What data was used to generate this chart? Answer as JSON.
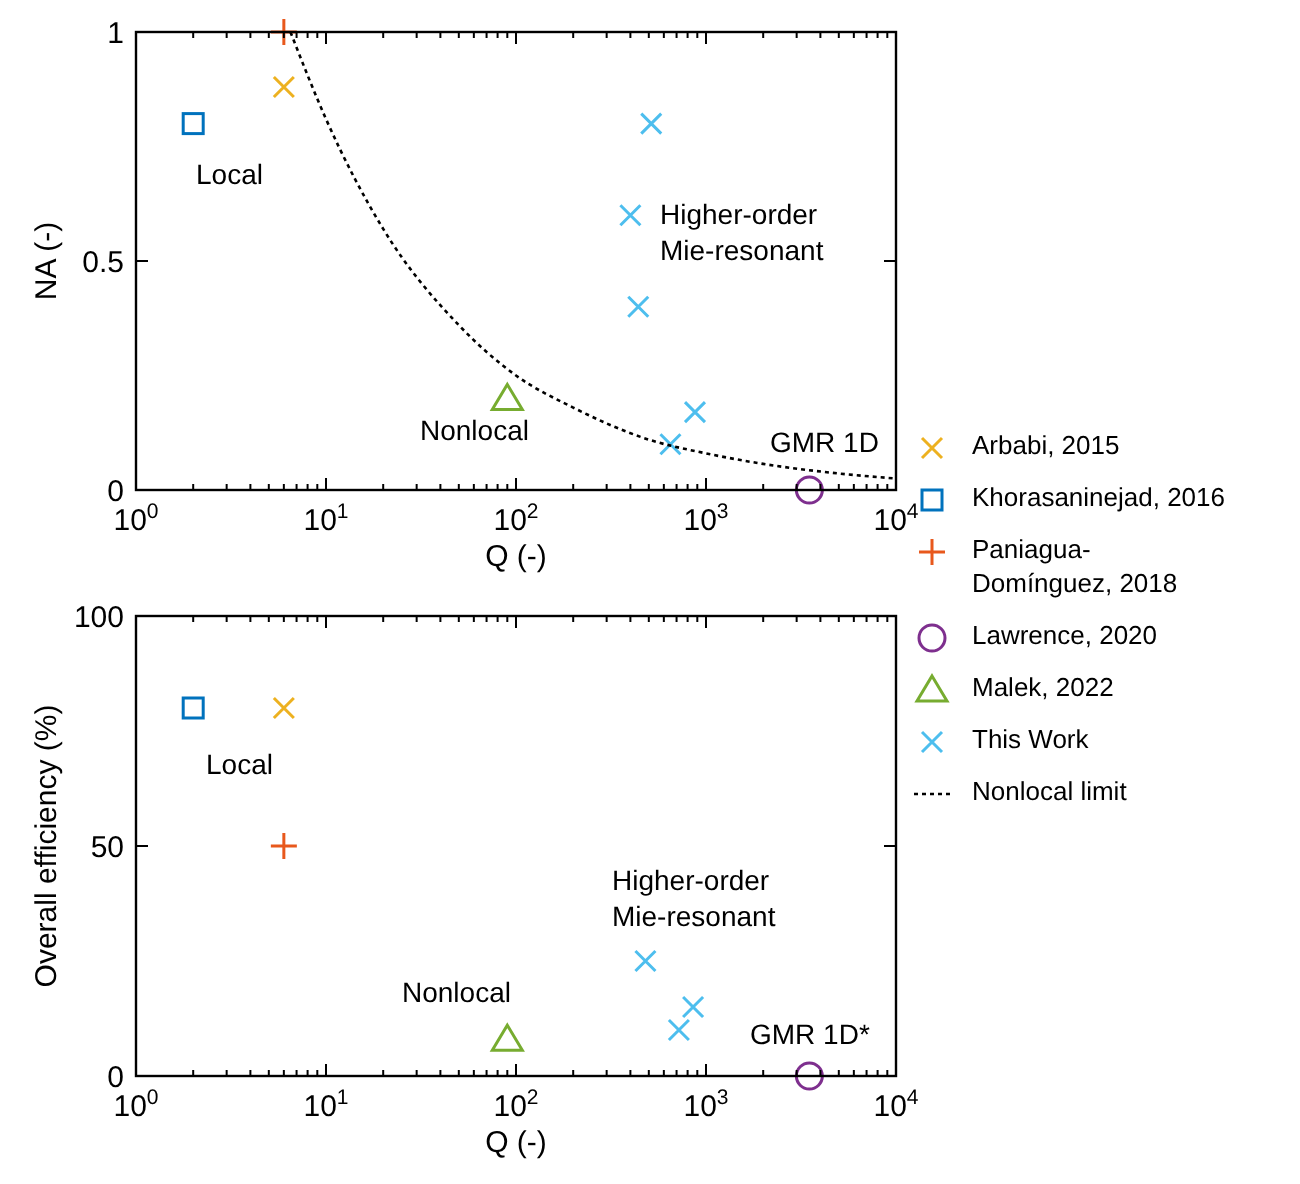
{
  "chart_data": [
    {
      "type": "scatter",
      "xlabel": "Q (-)",
      "ylabel": "NA (-)",
      "log": "x",
      "xlim": [
        1,
        10000
      ],
      "ylim": [
        0,
        1
      ],
      "xticks": [
        {
          "value": 1,
          "label": "10$^{0}$"
        },
        {
          "value": 10,
          "label": "10$^{1}$"
        },
        {
          "value": 100,
          "label": "10$^{2}$"
        },
        {
          "value": 1000,
          "label": "10$^{3}$"
        },
        {
          "value": 10000,
          "label": "10$^{4}$"
        }
      ],
      "yticks": [
        0,
        0.5,
        1
      ],
      "grid": false,
      "legend": "right",
      "series": [
        {
          "name": "Arbabi, 2015",
          "color": "#edb120",
          "marker": "cross",
          "x": [
            6
          ],
          "values": [
            0.88
          ]
        },
        {
          "name": "Khorasaninejad, 2016",
          "color": "#0072bd",
          "marker": "square",
          "x": [
            2
          ],
          "values": [
            0.8
          ]
        },
        {
          "name": "Paniagua-\nDomínguez, 2018",
          "color": "#e8581c",
          "marker": "plus",
          "x": [
            6
          ],
          "values": [
            1
          ]
        },
        {
          "name": "Lawrence, 2020",
          "color": "#7e2f8e",
          "marker": "circle",
          "x": [
            3500
          ],
          "values": [
            0
          ]
        },
        {
          "name": "Malek, 2022",
          "color": "#77ac30",
          "marker": "triangle",
          "x": [
            90
          ],
          "values": [
            0.2
          ]
        },
        {
          "name": "This Work",
          "color": "#4dbeee",
          "marker": "cross",
          "x": [
            515,
            400,
            440,
            875,
            650
          ],
          "values": [
            0.8,
            0.6,
            0.4,
            0.17,
            0.1
          ]
        },
        {
          "name": "Nonlocal limit",
          "type": "line",
          "color": "#000000",
          "line_style": "dotted",
          "x": [
            6.5,
            10,
            20,
            50,
            100,
            200,
            500,
            1000,
            2000,
            5000,
            10000
          ],
          "values": [
            1,
            0.81,
            0.57,
            0.36,
            0.25,
            0.18,
            0.11,
            0.08,
            0.057,
            0.036,
            0.025
          ]
        }
      ],
      "annotations": [
        "Local",
        "Higher-order\nMie-resonant",
        "Nonlocal",
        "GMR 1D"
      ]
    },
    {
      "type": "scatter",
      "xlabel": "Q (-)",
      "ylabel": "Overall efficiency (%)",
      "log": "x",
      "xlim": [
        1,
        10000
      ],
      "ylim": [
        0,
        100
      ],
      "xticks": [
        {
          "value": 1,
          "label": "10$^{0}$"
        },
        {
          "value": 10,
          "label": "10$^{1}$"
        },
        {
          "value": 100,
          "label": "10$^{2}$"
        },
        {
          "value": 1000,
          "label": "10$^{3}$"
        },
        {
          "value": 10000,
          "label": "10$^{4}$"
        }
      ],
      "yticks": [
        0,
        50,
        100
      ],
      "grid": false,
      "series": [
        {
          "color": "#edb120",
          "marker": "cross",
          "x": [
            6
          ],
          "values": [
            80
          ]
        },
        {
          "color": "#0072bd",
          "marker": "square",
          "x": [
            2
          ],
          "values": [
            80
          ]
        },
        {
          "color": "#e8581c",
          "marker": "plus",
          "x": [
            6
          ],
          "values": [
            50
          ]
        },
        {
          "color": "#7e2f8e",
          "marker": "circle",
          "x": [
            3500
          ],
          "values": [
            0
          ]
        },
        {
          "color": "#77ac30",
          "marker": "triangle",
          "x": [
            90
          ],
          "values": [
            8
          ]
        },
        {
          "color": "#4dbeee",
          "marker": "cross",
          "x": [
            480,
            855,
            720
          ],
          "values": [
            25,
            15,
            10
          ]
        }
      ],
      "annotations": [
        "Local",
        "Higher-order\nMie-resonant",
        "Nonlocal",
        "GMR 1D*"
      ]
    }
  ]
}
